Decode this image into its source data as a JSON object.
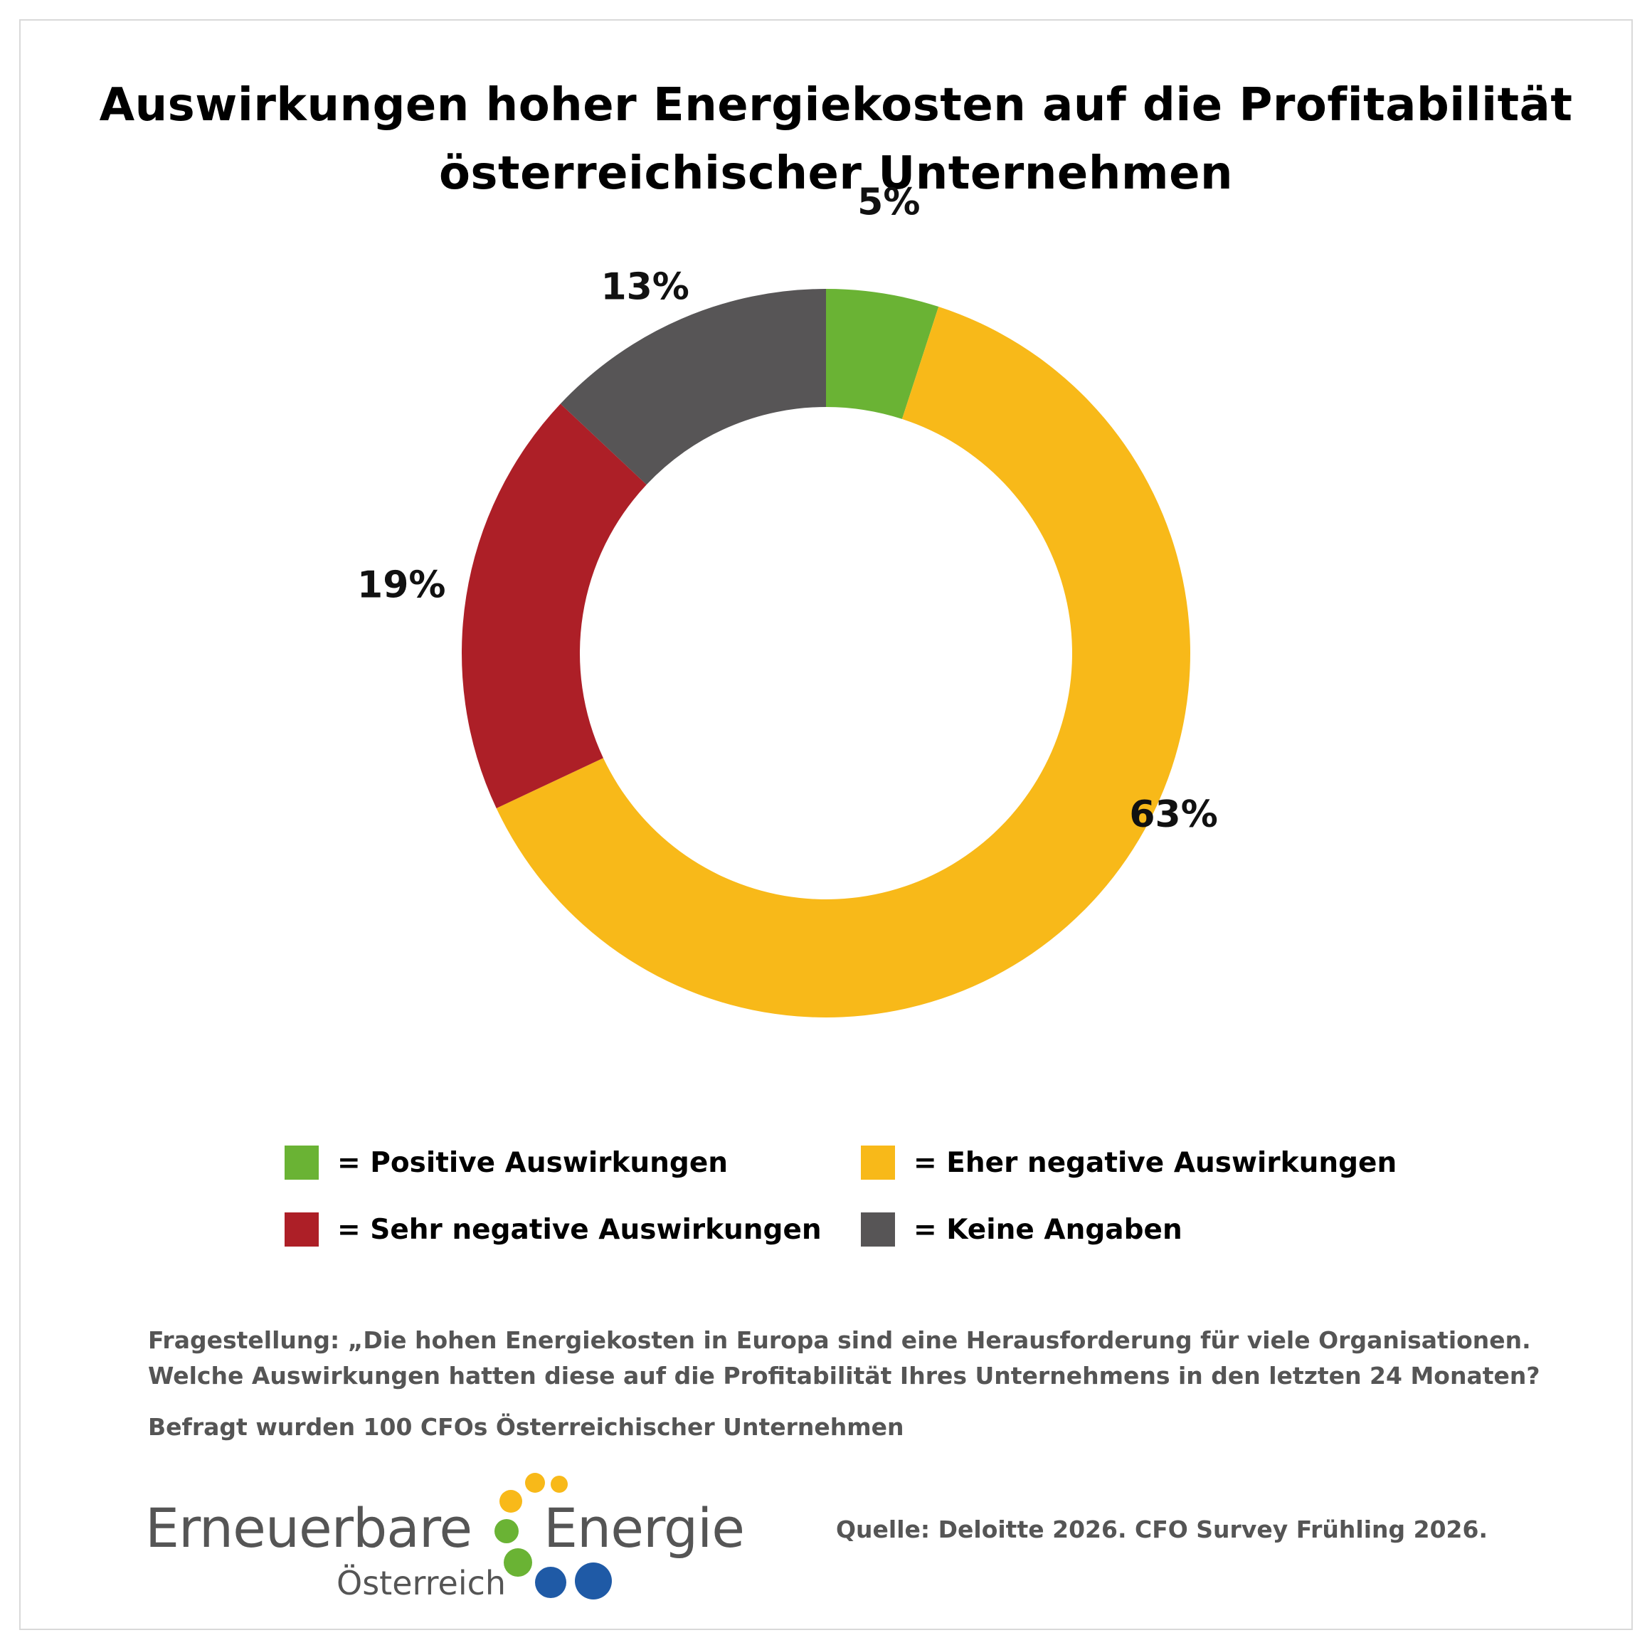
{
  "title": {
    "line1": "Auswirkungen hoher Energiekosten auf die Profitabilität",
    "line2": "österreichischer Unternehmen"
  },
  "chart_data": {
    "type": "pie",
    "donut": true,
    "categories": [
      "Positive Auswirkungen",
      "Eher negative Auswirkungen",
      "Sehr negative Auswirkungen",
      "Keine Angaben"
    ],
    "values": [
      5,
      63,
      19,
      13
    ],
    "value_labels": [
      "5%",
      "63%",
      "19%",
      "13%"
    ],
    "colors": [
      "#6ab334",
      "#f8b919",
      "#ad1f27",
      "#575556"
    ],
    "start": "12 o'clock, clockwise",
    "legend_placement": "bottom"
  },
  "legend": [
    {
      "label": "= Positive Auswirkungen",
      "color": "#6ab334"
    },
    {
      "label": "= Eher negative Auswirkungen",
      "color": "#f8b919"
    },
    {
      "label": "= Sehr negative Auswirkungen",
      "color": "#ad1f27"
    },
    {
      "label": "= Keine Angaben",
      "color": "#575556"
    }
  ],
  "notes": {
    "question_line1": "Fragestellung: „Die hohen Energiekosten in Europa sind eine Herausforderung für viele Organisationen.",
    "question_line2": "Welche Auswirkungen hatten diese auf die Profitabilität Ihres Unternehmens in den letzten 24 Monaten?",
    "respondents": "Befragt wurden 100 CFOs Österreichischer Unternehmen"
  },
  "logo": {
    "word1": "Erneuerbare",
    "word2": "Energie",
    "word3": "Österreich",
    "dot_colors": [
      "#f8b919",
      "#6ab334",
      "#1f5aa6"
    ]
  },
  "source": "Quelle: Deloitte 2026. CFO Survey Frühling 2026."
}
